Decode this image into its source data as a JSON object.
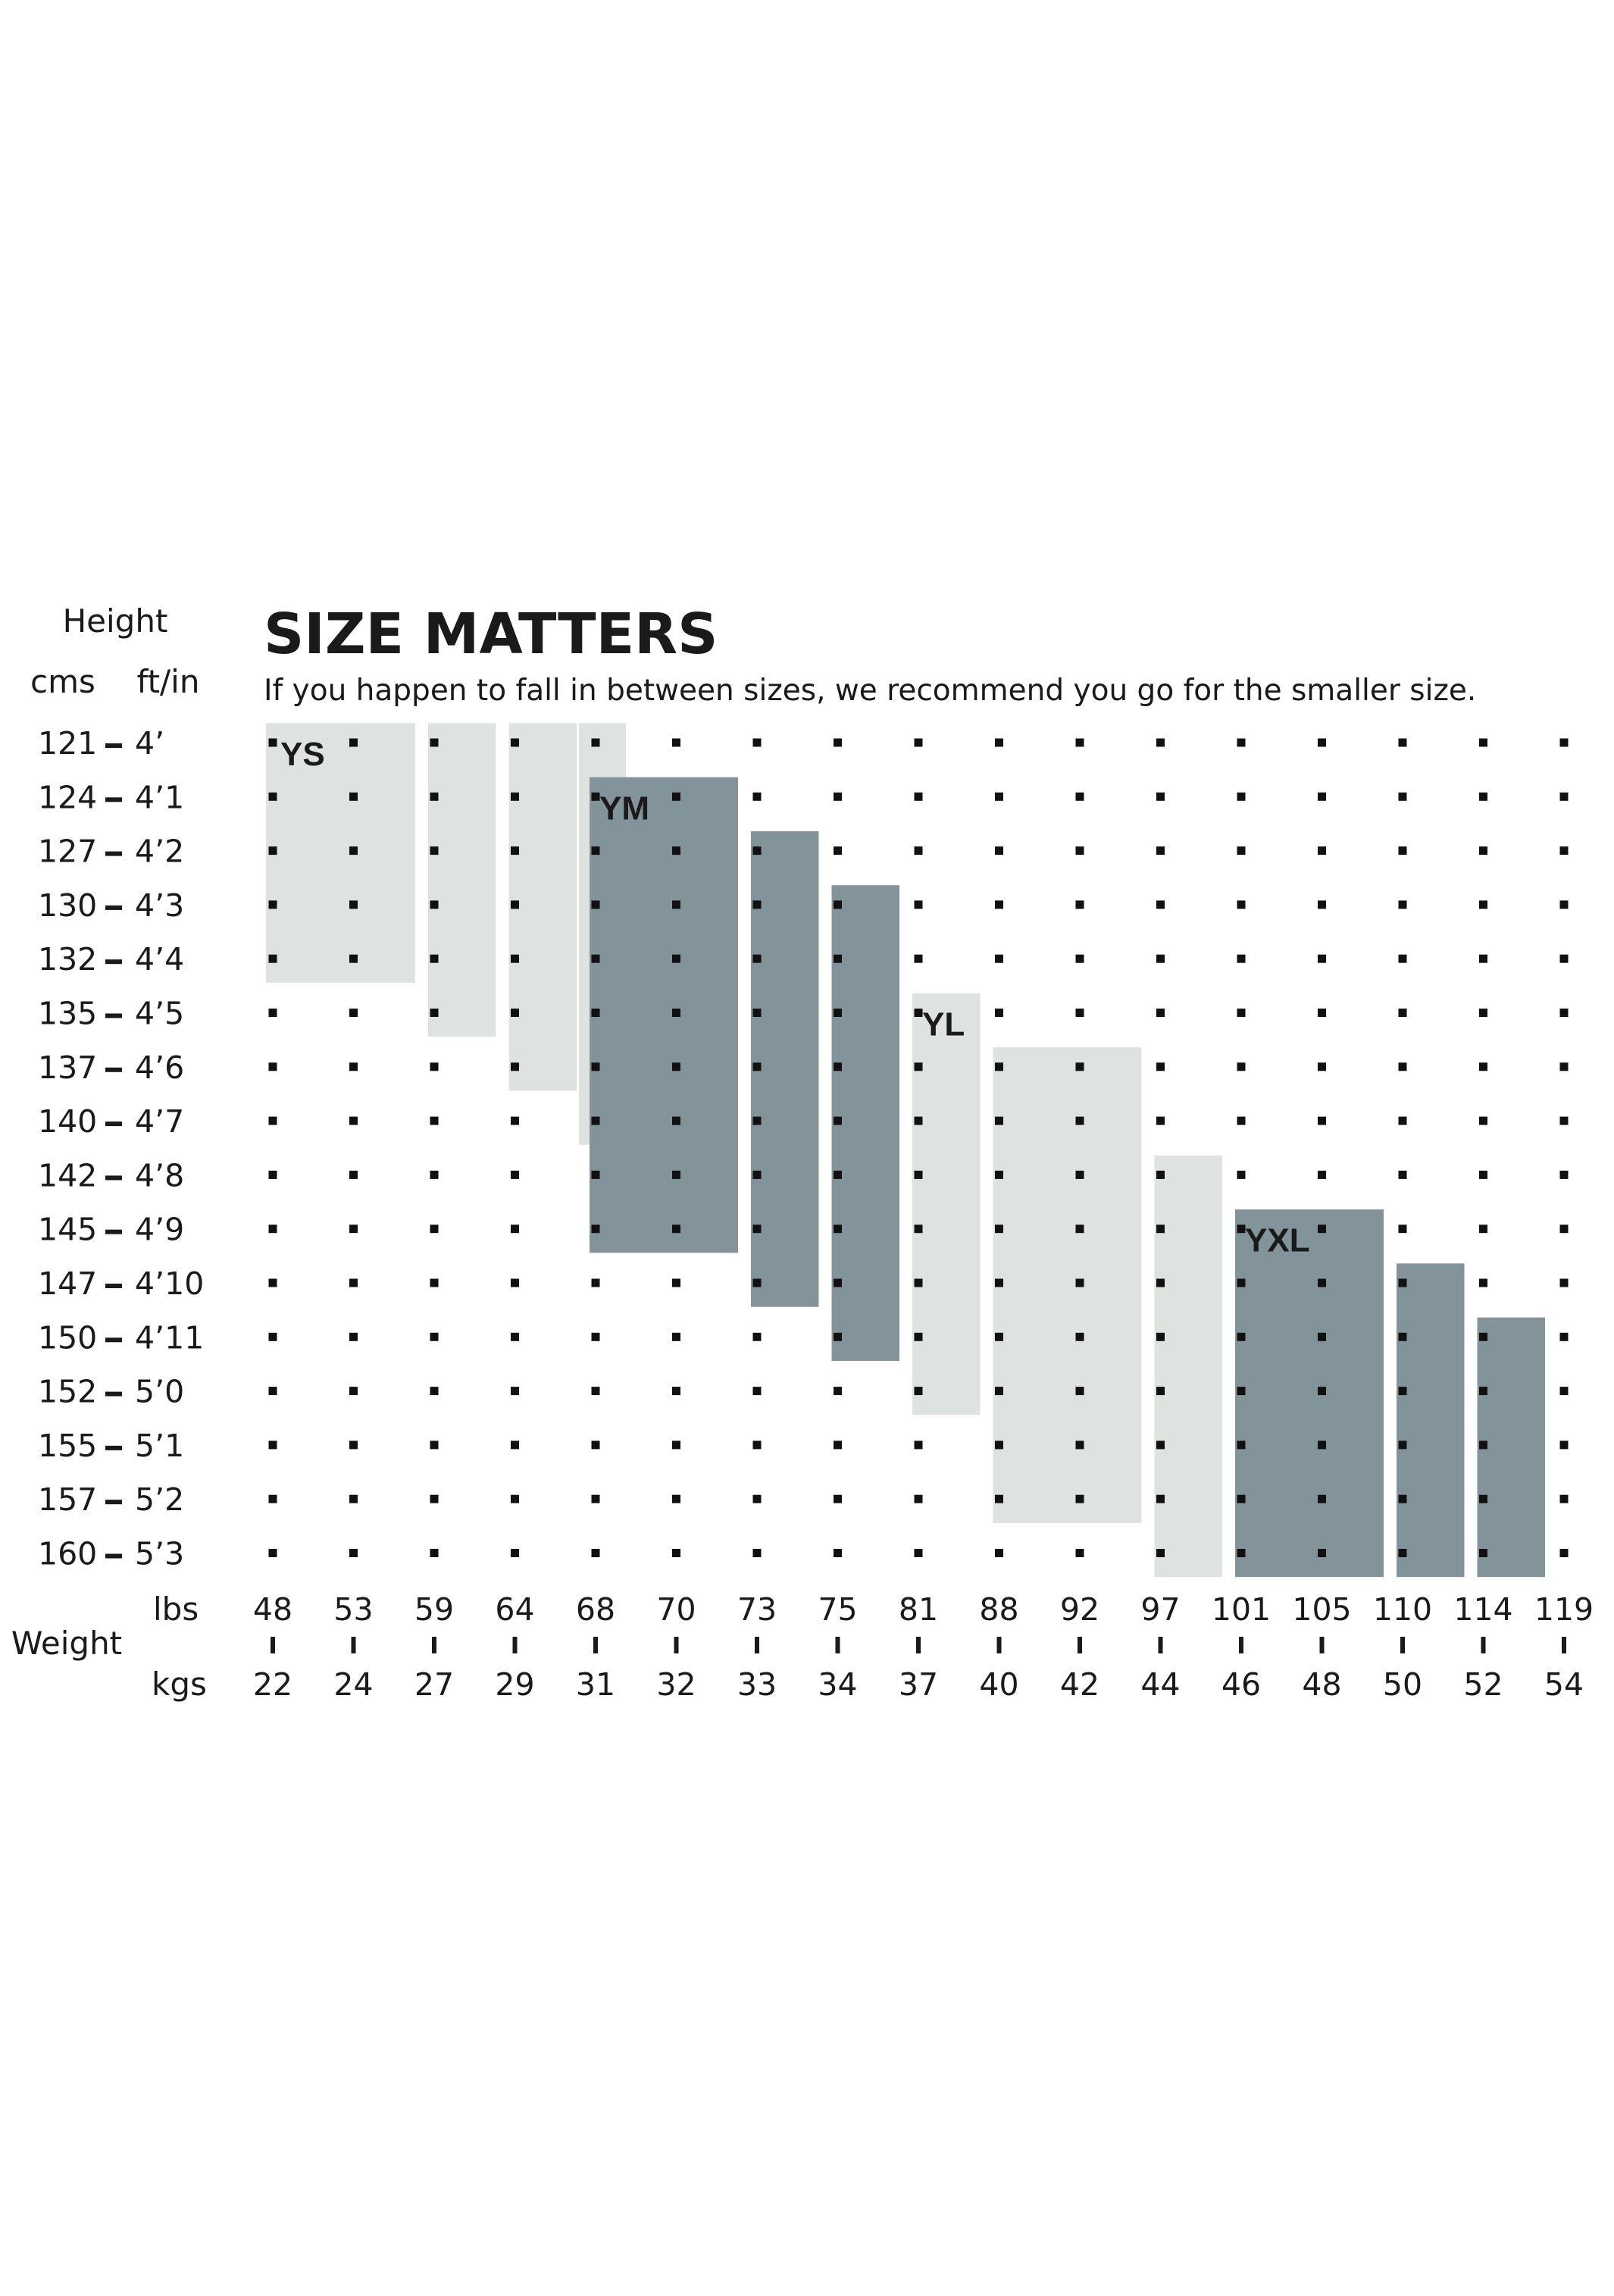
{
  "chart_data": {
    "type": "heatmap",
    "title": "SIZE MATTERS",
    "subtitle": "If you happen to fall in between sizes, we recommend you go for the smaller size.",
    "height_axis": {
      "label": "Height",
      "col1_label": "cms",
      "col2_label": "ft/in",
      "rows": [
        {
          "cm": "121",
          "ft": "4’"
        },
        {
          "cm": "124",
          "ft": "4’1"
        },
        {
          "cm": "127",
          "ft": "4’2"
        },
        {
          "cm": "130",
          "ft": "4’3"
        },
        {
          "cm": "132",
          "ft": "4’4"
        },
        {
          "cm": "135",
          "ft": "4’5"
        },
        {
          "cm": "137",
          "ft": "4’6"
        },
        {
          "cm": "140",
          "ft": "4’7"
        },
        {
          "cm": "142",
          "ft": "4’8"
        },
        {
          "cm": "145",
          "ft": "4’9"
        },
        {
          "cm": "147",
          "ft": "4’10"
        },
        {
          "cm": "150",
          "ft": "4’11"
        },
        {
          "cm": "152",
          "ft": "5’0"
        },
        {
          "cm": "155",
          "ft": "5’1"
        },
        {
          "cm": "157",
          "ft": "5’2"
        },
        {
          "cm": "160",
          "ft": "5’3"
        }
      ]
    },
    "weight_axis": {
      "label": "Weight",
      "lbs_label": "lbs",
      "kgs_label": "kgs",
      "lbs": [
        "48",
        "53",
        "59",
        "64",
        "68",
        "70",
        "73",
        "75",
        "81",
        "88",
        "92",
        "97",
        "101",
        "105",
        "110",
        "114",
        "119"
      ],
      "kgs": [
        "22",
        "24",
        "27",
        "29",
        "31",
        "32",
        "33",
        "34",
        "37",
        "40",
        "42",
        "44",
        "46",
        "48",
        "50",
        "52",
        "54"
      ]
    },
    "sizes": [
      {
        "name": "YS",
        "shade": "light",
        "ranges": [
          {
            "min_kg": "22",
            "max_kg": "27",
            "min_cm": "121",
            "max_cm": "132"
          },
          {
            "min_kg": "27",
            "max_kg": "29",
            "min_cm": "121",
            "max_cm": "135"
          },
          {
            "min_kg": "29",
            "max_kg": "31",
            "min_cm": "121",
            "max_cm": "137"
          },
          {
            "min_kg": "31",
            "max_kg": "31",
            "min_cm": "121",
            "max_cm": "140"
          }
        ]
      },
      {
        "name": "YM",
        "shade": "dark",
        "ranges": [
          {
            "min_kg": "31",
            "max_kg": "33",
            "min_cm": "124",
            "max_cm": "145"
          },
          {
            "min_kg": "33",
            "max_kg": "34",
            "min_cm": "127",
            "max_cm": "147"
          },
          {
            "min_kg": "34",
            "max_kg": "37",
            "min_cm": "130",
            "max_cm": "150"
          }
        ]
      },
      {
        "name": "YL",
        "shade": "light",
        "ranges": [
          {
            "min_kg": "37",
            "max_kg": "40",
            "min_cm": "135",
            "max_cm": "152"
          },
          {
            "min_kg": "40",
            "max_kg": "44",
            "min_cm": "137",
            "max_cm": "157"
          },
          {
            "min_kg": "44",
            "max_kg": "46",
            "min_cm": "142",
            "max_cm": "160"
          }
        ]
      },
      {
        "name": "YXL",
        "shade": "dark",
        "ranges": [
          {
            "min_kg": "46",
            "max_kg": "50",
            "min_cm": "145",
            "max_cm": "160"
          },
          {
            "min_kg": "50",
            "max_kg": "52",
            "min_cm": "147",
            "max_cm": "160"
          },
          {
            "min_kg": "52",
            "max_kg": "54",
            "min_cm": "150",
            "max_cm": "160"
          }
        ]
      }
    ],
    "colors": {
      "light": "#dfe3e0",
      "dark": "#83939a",
      "dots": "#111111",
      "text": "#1a1a1a"
    }
  }
}
